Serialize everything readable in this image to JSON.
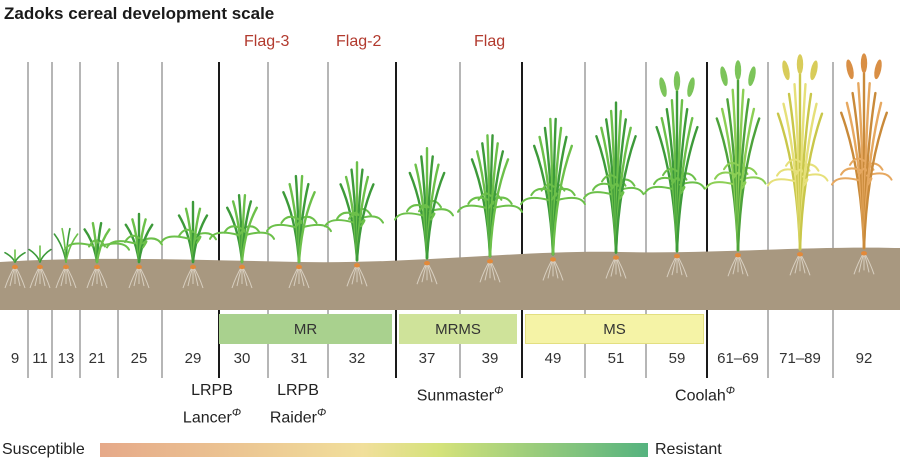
{
  "title": "Zadoks cereal development scale",
  "flags": [
    "Flag-3",
    "Flag-2",
    "Flag"
  ],
  "stages": [
    "9",
    "11",
    "13",
    "21",
    "25",
    "29",
    "30",
    "31",
    "32",
    "37",
    "39",
    "49",
    "51",
    "59",
    "61–69",
    "71–89",
    "92"
  ],
  "bands": [
    {
      "label": "MR",
      "color": "#a9d18e"
    },
    {
      "label": "MRMS",
      "color": "#cfe39a"
    },
    {
      "label": "MS",
      "color": "#f5f3a6"
    }
  ],
  "varieties": [
    {
      "line1": "LRPB",
      "line2": "Lancer",
      "mark": "Φ"
    },
    {
      "line1": "LRPB",
      "line2": "Raider",
      "mark": "Φ"
    },
    {
      "line1": "",
      "line2": "Sunmaster",
      "mark": "Φ"
    },
    {
      "line1": "",
      "line2": "Coolah",
      "mark": "Φ"
    }
  ],
  "scale": {
    "left": "Susceptible",
    "right": "Resistant"
  },
  "colors": {
    "soil": "#a89880",
    "flag_text": "#b23a2e",
    "plant_green": "#3d9a3a"
  }
}
